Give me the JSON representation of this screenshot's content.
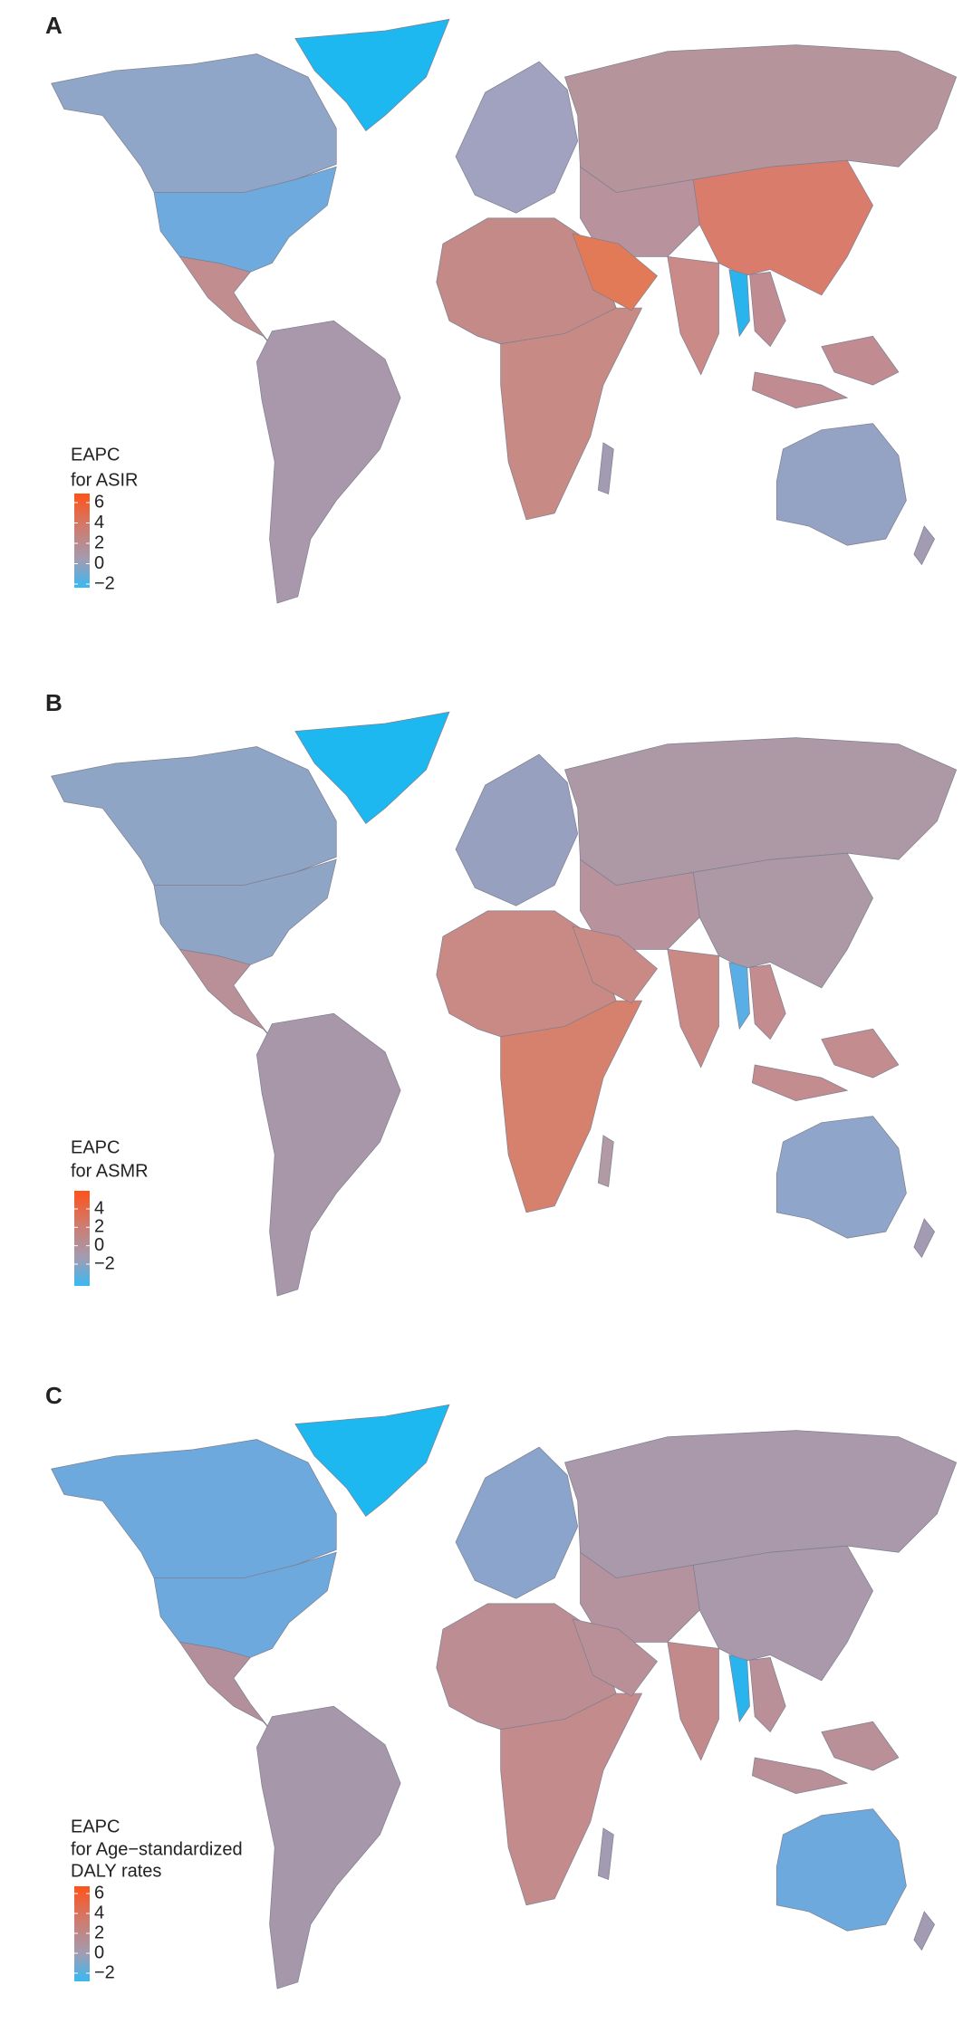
{
  "panels": [
    {
      "label": "A",
      "legend": {
        "title": [
          "EAPC",
          "for ASIR"
        ],
        "ticks": [
          6,
          4,
          2,
          0,
          {
            "value": -2,
            "label": "−2"
          }
        ]
      }
    },
    {
      "label": "B",
      "legend": {
        "title": [
          "EAPC",
          "for ASMR"
        ],
        "ticks": [
          4,
          2,
          0,
          {
            "value": -2,
            "label": "−2"
          }
        ]
      }
    },
    {
      "label": "C",
      "legend": {
        "title": [
          "EAPC",
          "for Age−standardized",
          "DALY rates"
        ],
        "ticks": [
          6,
          4,
          2,
          0,
          {
            "value": -2,
            "label": "−2"
          }
        ]
      }
    }
  ]
}
